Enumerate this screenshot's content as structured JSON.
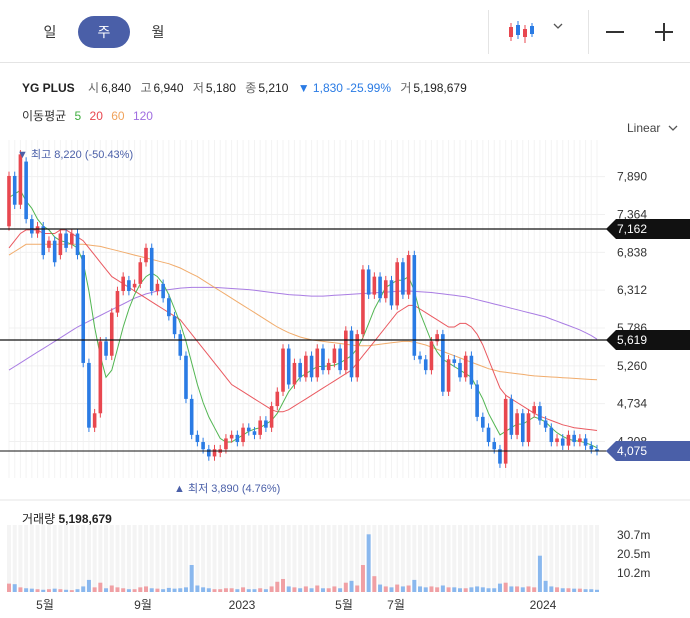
{
  "tabs": [
    {
      "label": "일",
      "active": false
    },
    {
      "label": "주",
      "active": true
    },
    {
      "label": "월",
      "active": false
    }
  ],
  "toolbar": {
    "chart_type_icon": "candlestick-icon",
    "dropdown_icon": "chevron-down-icon",
    "zoom_out_icon": "minus-icon",
    "zoom_in_icon": "plus-icon"
  },
  "stock": {
    "name": "YG PLUS",
    "open_label": "시",
    "open": "6,840",
    "high_label": "고",
    "high": "6,940",
    "low_label": "저",
    "low": "5,180",
    "close_label": "종",
    "close": "5,210",
    "change": "▼ 1,830 -25.99%",
    "volume_label": "거",
    "volume": "5,198,679"
  },
  "moving_average": {
    "label": "이동평균",
    "periods": [
      "5",
      "20",
      "60",
      "120"
    ]
  },
  "colors": {
    "up": "#e8474f",
    "down": "#2a7be4",
    "ma5": "#3fae3f",
    "ma20": "#e8474f",
    "ma60": "#f0a35c",
    "ma120": "#a06ee0",
    "price_tag": "#4a5fa8"
  },
  "scale_label": "Linear",
  "chart_data": {
    "type": "candlestick",
    "ylim": [
      3700,
      8400
    ],
    "y_ticks": [
      "7,890",
      "7,364",
      "6,838",
      "6,312",
      "5,786",
      "5,260",
      "4,734",
      "4,208"
    ],
    "x_ticks": [
      "5월",
      "9월",
      "2023",
      "5월",
      "7월",
      "2024"
    ],
    "high_annotation": "▼ 최고 8,220 (-50.43%)",
    "low_annotation": "▲ 최저 3,890 (4.76%)",
    "horizontal_lines": [
      {
        "value": 7162,
        "label": "7,162"
      },
      {
        "value": 5619,
        "label": "5,619"
      }
    ],
    "current_price": {
      "value": 4075,
      "label": "4,075"
    },
    "candles": [
      [
        7200,
        7900
      ],
      [
        7900,
        7500
      ],
      [
        7500,
        8200
      ],
      [
        8100,
        7300
      ],
      [
        7300,
        7100
      ],
      [
        7100,
        7200
      ],
      [
        7200,
        6800
      ],
      [
        6900,
        7000
      ],
      [
        7000,
        6700
      ],
      [
        6800,
        7100
      ],
      [
        7100,
        6900
      ],
      [
        6950,
        7100
      ],
      [
        7100,
        6800
      ],
      [
        6800,
        5300
      ],
      [
        5300,
        4400
      ],
      [
        4400,
        4600
      ],
      [
        4600,
        5600
      ],
      [
        5600,
        5400
      ],
      [
        5400,
        6000
      ],
      [
        6000,
        6300
      ],
      [
        6300,
        6500
      ],
      [
        6450,
        6300
      ],
      [
        6350,
        6400
      ],
      [
        6400,
        6700
      ],
      [
        6700,
        6900
      ],
      [
        6900,
        6300
      ],
      [
        6300,
        6400
      ],
      [
        6400,
        6200
      ],
      [
        6200,
        5950
      ],
      [
        5950,
        5700
      ],
      [
        5700,
        5400
      ],
      [
        5400,
        4800
      ],
      [
        4800,
        4300
      ],
      [
        4300,
        4200
      ],
      [
        4200,
        4100
      ],
      [
        4100,
        4000
      ],
      [
        4000,
        4100
      ],
      [
        4050,
        4100
      ],
      [
        4100,
        4250
      ],
      [
        4250,
        4300
      ],
      [
        4300,
        4200
      ],
      [
        4200,
        4400
      ],
      [
        4400,
        4350
      ],
      [
        4350,
        4300
      ],
      [
        4300,
        4500
      ],
      [
        4500,
        4400
      ],
      [
        4400,
        4700
      ],
      [
        4700,
        4900
      ],
      [
        4900,
        5500
      ],
      [
        5500,
        5000
      ],
      [
        5000,
        5300
      ],
      [
        5300,
        5100
      ],
      [
        5100,
        5400
      ],
      [
        5400,
        5100
      ],
      [
        5100,
        5500
      ],
      [
        5500,
        5200
      ],
      [
        5200,
        5300
      ],
      [
        5300,
        5500
      ],
      [
        5500,
        5200
      ],
      [
        5200,
        5750
      ],
      [
        5750,
        5100
      ],
      [
        5100,
        5700
      ],
      [
        5700,
        6600
      ],
      [
        6600,
        6250
      ],
      [
        6250,
        6500
      ],
      [
        6500,
        6200
      ],
      [
        6200,
        6450
      ],
      [
        6450,
        6100
      ],
      [
        6100,
        6700
      ],
      [
        6700,
        6250
      ],
      [
        6250,
        6800
      ],
      [
        6800,
        5400
      ],
      [
        5400,
        5350
      ],
      [
        5350,
        5200
      ],
      [
        5200,
        5600
      ],
      [
        5600,
        5700
      ],
      [
        5700,
        4900
      ],
      [
        4900,
        5350
      ],
      [
        5350,
        5300
      ],
      [
        5300,
        5100
      ],
      [
        5100,
        5400
      ],
      [
        5400,
        5000
      ],
      [
        5000,
        4550
      ],
      [
        4550,
        4400
      ],
      [
        4400,
        4200
      ],
      [
        4200,
        4100
      ],
      [
        4100,
        3900
      ],
      [
        3900,
        4800
      ],
      [
        4800,
        4300
      ],
      [
        4300,
        4600
      ],
      [
        4600,
        4200
      ],
      [
        4200,
        4600
      ],
      [
        4600,
        4700
      ],
      [
        4700,
        4500
      ],
      [
        4500,
        4400
      ],
      [
        4400,
        4200
      ],
      [
        4200,
        4250
      ],
      [
        4250,
        4150
      ],
      [
        4150,
        4300
      ],
      [
        4300,
        4200
      ],
      [
        4200,
        4250
      ],
      [
        4250,
        4150
      ],
      [
        4150,
        4100
      ],
      [
        4100,
        4075
      ]
    ],
    "ma5": [
      7600,
      7650,
      7700,
      7550,
      7450,
      7300,
      7200,
      7150,
      7050,
      7000,
      6980,
      6950,
      6900,
      6700,
      6300,
      5800,
      5400,
      5100,
      5200,
      5500,
      5800,
      6050,
      6250,
      6400,
      6500,
      6550,
      6500,
      6400,
      6250,
      6050,
      5850,
      5600,
      5300,
      5000,
      4750,
      4550,
      4400,
      4250,
      4200,
      4200,
      4250,
      4300,
      4350,
      4380,
      4400,
      4450,
      4500,
      4600,
      4750,
      4900,
      5000,
      5100,
      5150,
      5200,
      5250,
      5250,
      5260,
      5270,
      5300,
      5350,
      5400,
      5500,
      5650,
      5850,
      6050,
      6200,
      6350,
      6400,
      6450,
      6450,
      6500,
      6300,
      6000,
      5800,
      5600,
      5450,
      5350,
      5300,
      5250,
      5200,
      5150,
      5100,
      4950,
      4800,
      4600,
      4450,
      4300,
      4350,
      4400,
      4450,
      4450,
      4500,
      4550,
      4520,
      4480,
      4400,
      4330,
      4280,
      4240,
      4220,
      4210,
      4190,
      4160,
      4120
    ],
    "ma20": [
      6900,
      7000,
      7100,
      7150,
      7150,
      7150,
      7100,
      7100,
      7100,
      7150,
      7150,
      7100,
      7050,
      7000,
      6900,
      6800,
      6700,
      6600,
      6500,
      6450,
      6400,
      6350,
      6300,
      6250,
      6200,
      6150,
      6100,
      6050,
      6000,
      5950,
      5900,
      5800,
      5700,
      5600,
      5500,
      5400,
      5300,
      5200,
      5100,
      5000,
      4950,
      4900,
      4850,
      4800,
      4750,
      4700,
      4650,
      4620,
      4620,
      4650,
      4700,
      4750,
      4800,
      4850,
      4900,
      4950,
      5000,
      5050,
      5100,
      5150,
      5200,
      5300,
      5400,
      5500,
      5600,
      5700,
      5800,
      5900,
      6000,
      6050,
      6100,
      6100,
      6050,
      6000,
      5950,
      5900,
      5850,
      5800,
      5800,
      5850,
      5850,
      5800,
      5700,
      5550,
      5350,
      5150,
      4950,
      4850,
      4800,
      4750,
      4700,
      4650,
      4600,
      4560,
      4530,
      4500,
      4470,
      4440,
      4420,
      4400,
      4390,
      4380,
      4370,
      4360
    ],
    "ma60": [
      6800,
      6850,
      6900,
      6950,
      6950,
      6950,
      6950,
      6950,
      6950,
      6950,
      6950,
      6950,
      6950,
      6950,
      6940,
      6930,
      6920,
      6900,
      6880,
      6860,
      6840,
      6820,
      6800,
      6780,
      6760,
      6740,
      6720,
      6700,
      6680,
      6650,
      6620,
      6580,
      6540,
      6500,
      6450,
      6400,
      6350,
      6300,
      6250,
      6200,
      6150,
      6100,
      6050,
      6000,
      5950,
      5900,
      5850,
      5800,
      5760,
      5720,
      5690,
      5660,
      5640,
      5620,
      5610,
      5600,
      5590,
      5580,
      5570,
      5560,
      5550,
      5540,
      5540,
      5540,
      5550,
      5560,
      5570,
      5580,
      5590,
      5600,
      5600,
      5590,
      5570,
      5550,
      5520,
      5490,
      5460,
      5430,
      5400,
      5370,
      5340,
      5310,
      5280,
      5250,
      5220,
      5200,
      5180,
      5170,
      5160,
      5150,
      5140,
      5130,
      5120,
      5115,
      5110,
      5105,
      5100,
      5095,
      5090,
      5085,
      5080,
      5075,
      5070,
      5065
    ],
    "ma120": [
      5200,
      5250,
      5300,
      5350,
      5400,
      5450,
      5500,
      5550,
      5600,
      5650,
      5700,
      5750,
      5800,
      5840,
      5880,
      5920,
      5960,
      6000,
      6040,
      6080,
      6120,
      6160,
      6200,
      6230,
      6260,
      6280,
      6300,
      6310,
      6320,
      6330,
      6340,
      6345,
      6350,
      6350,
      6350,
      6350,
      6350,
      6345,
      6340,
      6335,
      6330,
      6325,
      6320,
      6310,
      6300,
      6290,
      6280,
      6270,
      6260,
      6250,
      6245,
      6240,
      6235,
      6230,
      6230,
      6230,
      6235,
      6240,
      6245,
      6250,
      6255,
      6260,
      6265,
      6270,
      6275,
      6280,
      6285,
      6290,
      6295,
      6300,
      6300,
      6295,
      6290,
      6285,
      6280,
      6270,
      6260,
      6250,
      6240,
      6230,
      6220,
      6200,
      6180,
      6160,
      6140,
      6120,
      6100,
      6080,
      6060,
      6040,
      6020,
      6000,
      5980,
      5960,
      5940,
      5910,
      5880,
      5850,
      5820,
      5790,
      5760,
      5720,
      5680,
      5630
    ]
  },
  "volume": {
    "title_label": "거래량",
    "title_value": "5,198,679",
    "ylim": [
      0,
      36000000
    ],
    "y_ticks": [
      {
        "value": 30700000,
        "label": "30.7m"
      },
      {
        "value": 20500000,
        "label": "20.5m"
      },
      {
        "value": 10200000,
        "label": "10.2m"
      }
    ],
    "bars": [
      4.5,
      4.2,
      2.5,
      2.0,
      1.8,
      1.5,
      1.2,
      1.5,
      1.8,
      1.5,
      1.2,
      1.0,
      1.5,
      3.0,
      6.5,
      2.5,
      5.0,
      2.0,
      3.5,
      2.5,
      2.0,
      1.5,
      1.5,
      2.5,
      3.0,
      2.0,
      1.8,
      1.5,
      2.2,
      1.8,
      2.0,
      2.5,
      14.5,
      3.5,
      2.5,
      2.0,
      1.5,
      1.5,
      2.0,
      2.0,
      1.5,
      2.5,
      1.5,
      1.5,
      2.0,
      1.5,
      3.0,
      5.5,
      7.0,
      3.0,
      2.5,
      2.0,
      3.0,
      2.0,
      3.5,
      2.0,
      2.0,
      3.0,
      2.0,
      5.0,
      6.0,
      3.5,
      14.5,
      31.0,
      8.5,
      4.0,
      3.0,
      2.5,
      4.0,
      3.0,
      3.5,
      6.5,
      3.0,
      2.5,
      3.0,
      2.5,
      3.5,
      2.5,
      2.5,
      2.0,
      2.0,
      2.5,
      3.0,
      2.5,
      2.0,
      2.0,
      4.5,
      5.0,
      3.0,
      3.0,
      2.5,
      3.0,
      2.5,
      19.5,
      6.0,
      3.0,
      2.5,
      2.0,
      2.0,
      1.8,
      1.8,
      1.5,
      1.5,
      1.2
    ]
  }
}
